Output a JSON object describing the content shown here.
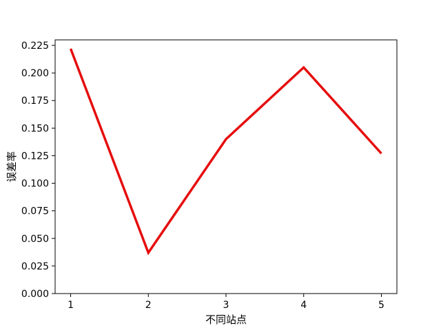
{
  "chart_data": {
    "type": "line",
    "title": "",
    "xlabel": "不同站点",
    "ylabel": "误差率",
    "x": [
      1,
      2,
      3,
      4,
      5
    ],
    "x_ticks": [
      "1",
      "2",
      "3",
      "4",
      "5"
    ],
    "xlim": [
      0.8,
      5.2
    ],
    "ylim": [
      0.0,
      0.23
    ],
    "y_ticks": [
      "0.000",
      "0.025",
      "0.050",
      "0.075",
      "0.100",
      "0.125",
      "0.150",
      "0.175",
      "0.200",
      "0.225"
    ],
    "series": [
      {
        "values": [
          0.222,
          0.037,
          0.14,
          0.205,
          0.127
        ],
        "color": "#e60d0d"
      }
    ],
    "grid": false,
    "legend": "none"
  }
}
